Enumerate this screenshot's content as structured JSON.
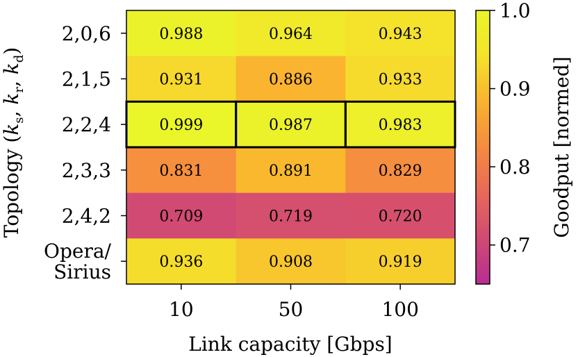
{
  "chart_data": {
    "type": "heatmap",
    "xlabel": "Link capacity [Gbps]",
    "ylabel_prefix": "Topology (",
    "ylabel_math": [
      "k",
      "s",
      "k",
      "r",
      "k",
      "d"
    ],
    "ylabel_suffix": ")",
    "x_categories": [
      "10",
      "50",
      "100"
    ],
    "y_categories": [
      {
        "lines": [
          "2,0,6"
        ]
      },
      {
        "lines": [
          "2,1,5"
        ]
      },
      {
        "lines": [
          "2,2,4"
        ]
      },
      {
        "lines": [
          "2,3,3"
        ]
      },
      {
        "lines": [
          "2,4,2"
        ]
      },
      {
        "lines": [
          "Opera/",
          "Sirius"
        ]
      }
    ],
    "values": [
      [
        0.988,
        0.964,
        0.943
      ],
      [
        0.931,
        0.886,
        0.933
      ],
      [
        0.999,
        0.987,
        0.983
      ],
      [
        0.831,
        0.891,
        0.829
      ],
      [
        0.709,
        0.719,
        0.72
      ],
      [
        0.936,
        0.908,
        0.919
      ]
    ],
    "cell_labels": [
      [
        "0.988",
        "0.964",
        "0.943"
      ],
      [
        "0.931",
        "0.886",
        "0.933"
      ],
      [
        "0.999",
        "0.987",
        "0.983"
      ],
      [
        "0.831",
        "0.891",
        "0.829"
      ],
      [
        "0.709",
        "0.719",
        "0.720"
      ],
      [
        "0.936",
        "0.908",
        "0.919"
      ]
    ],
    "highlighted_row": 2,
    "colorbar": {
      "label": "Goodput [normed]",
      "vmin": 0.65,
      "vmax": 1.0,
      "ticks": [
        "0.7",
        "0.8",
        "0.9",
        "1.0"
      ],
      "tick_values": [
        0.7,
        0.8,
        0.9,
        1.0
      ]
    },
    "colormap": [
      "#b92d93",
      "#d14a73",
      "#e8685a",
      "#f58b40",
      "#fab22f",
      "#f5e22b",
      "#eaf62a"
    ]
  }
}
